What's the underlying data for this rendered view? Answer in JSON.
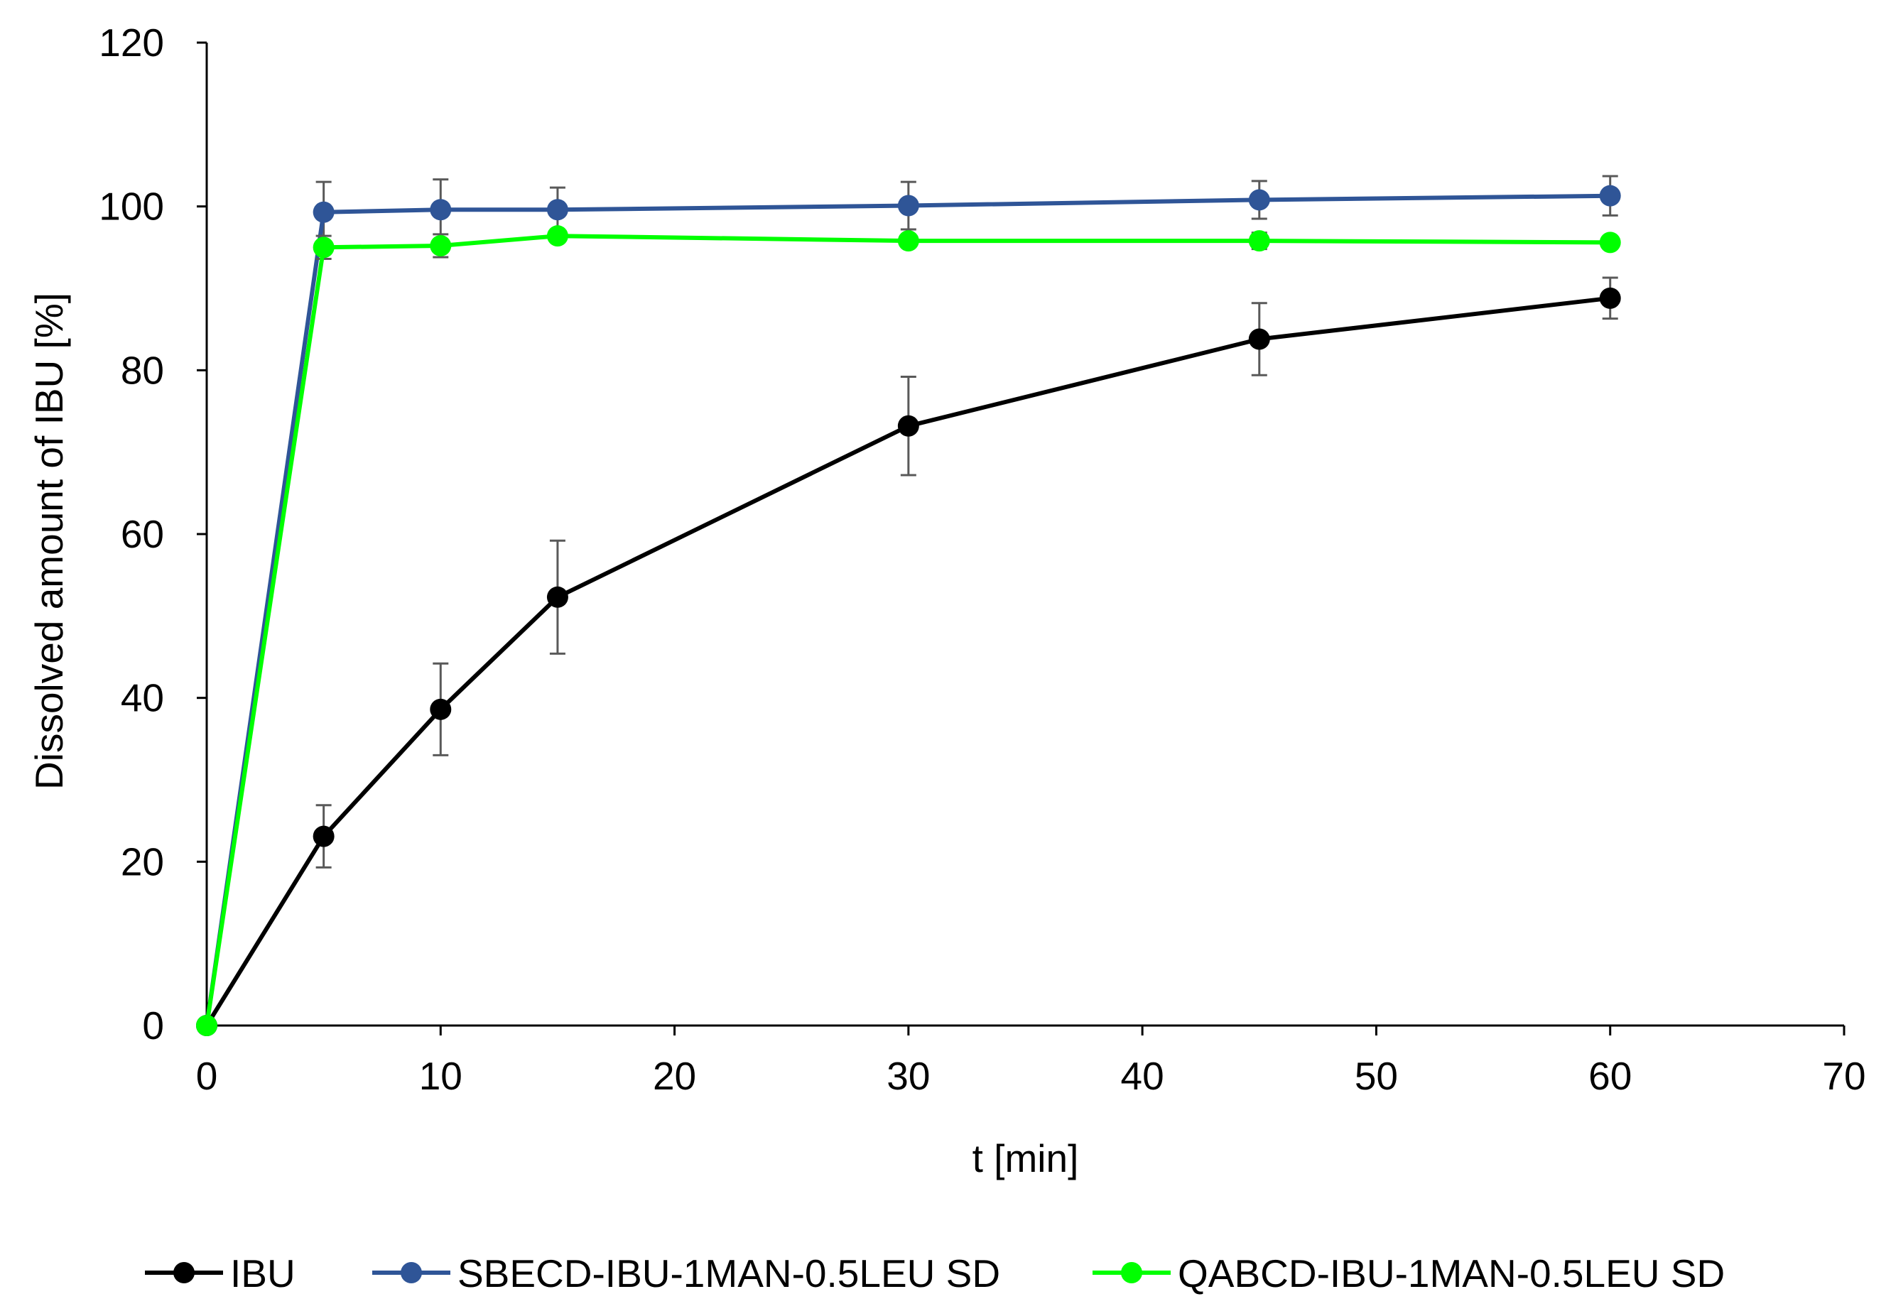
{
  "chart_data": {
    "type": "line",
    "title": "",
    "xlabel": "t [min]",
    "ylabel": "Dissolved amount of IBU  [%]",
    "xlim": [
      0,
      70
    ],
    "ylim": [
      0,
      120
    ],
    "xticks": [
      0,
      10,
      20,
      30,
      40,
      50,
      60,
      70
    ],
    "yticks": [
      0,
      20,
      40,
      60,
      80,
      100,
      120
    ],
    "grid": false,
    "legend_position": "bottom",
    "x": [
      0,
      5,
      10,
      15,
      30,
      45,
      60
    ],
    "series": [
      {
        "name": "IBU",
        "color": "#000000",
        "values": [
          0,
          23.1,
          38.6,
          52.3,
          73.2,
          83.8,
          88.8
        ],
        "errors": [
          0,
          3.8,
          5.6,
          6.9,
          6.0,
          4.4,
          2.5
        ]
      },
      {
        "name": "SBECD-IBU-1MAN-0.5LEU SD",
        "color": "#2f5597",
        "values": [
          0,
          99.3,
          99.6,
          99.6,
          100.1,
          100.8,
          101.3
        ],
        "errors": [
          0,
          3.7,
          3.7,
          2.7,
          2.9,
          2.3,
          2.4
        ]
      },
      {
        "name": "QABCD-IBU-1MAN-0.5LEU SD",
        "color": "#00ff00",
        "values": [
          0,
          95.0,
          95.2,
          96.4,
          95.8,
          95.8,
          95.6
        ],
        "errors": [
          0,
          1.4,
          1.4,
          0.4,
          0.5,
          1.0,
          0.6
        ]
      }
    ]
  }
}
